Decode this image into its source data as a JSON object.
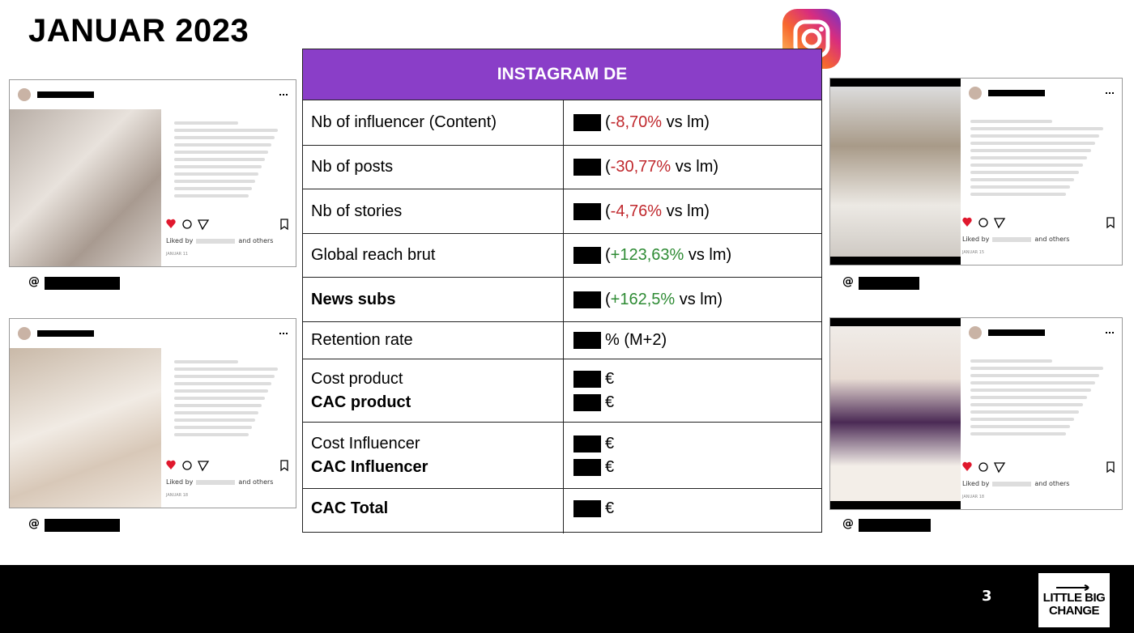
{
  "title": "JANUAR 2023",
  "table": {
    "header": "INSTAGRAM DE",
    "rows": [
      {
        "label": [
          {
            "text": "Nb of influencer (Content)",
            "bold": false
          }
        ],
        "value": [
          {
            "pre": "(",
            "change": "-8,70%",
            "post": " vs lm)",
            "color": "#c0282d"
          }
        ]
      },
      {
        "label": [
          {
            "text": "Nb of posts",
            "bold": false
          }
        ],
        "value": [
          {
            "pre": "(",
            "change": "-30,77%",
            "post": " vs lm)",
            "color": "#c0282d"
          }
        ]
      },
      {
        "label": [
          {
            "text": "Nb of stories",
            "bold": false
          }
        ],
        "value": [
          {
            "pre": "(",
            "change": "-4,76%",
            "post": " vs lm)",
            "color": "#c0282d"
          }
        ]
      },
      {
        "label": [
          {
            "text": "Global reach brut",
            "bold": false
          }
        ],
        "value": [
          {
            "pre": "(",
            "change": "+123,63%",
            "post": " vs lm)",
            "color": "#2e8b34"
          }
        ]
      },
      {
        "label": [
          {
            "text": "News subs",
            "bold": true
          }
        ],
        "value": [
          {
            "pre": "(",
            "change": "+162,5%",
            "post": " vs lm)",
            "color": "#2e8b34"
          }
        ]
      },
      {
        "label": [
          {
            "text": "Retention rate",
            "bold": false
          }
        ],
        "value": [
          {
            "post": "% (M+2)"
          }
        ]
      },
      {
        "label": [
          {
            "text": "Cost product",
            "bold": false
          },
          {
            "text": "CAC product",
            "bold": true
          }
        ],
        "value": [
          {
            "post": "€"
          },
          {
            "post": "€"
          }
        ]
      },
      {
        "label": [
          {
            "text": "Cost Influencer",
            "bold": false
          },
          {
            "text": "CAC Influencer",
            "bold": true
          }
        ],
        "value": [
          {
            "post": "€"
          },
          {
            "post": "€"
          }
        ]
      },
      {
        "label": [
          {
            "text": "CAC Total",
            "bold": true
          }
        ],
        "value": [
          {
            "post": "€"
          }
        ]
      }
    ]
  },
  "posts": [
    {
      "liked_by": "Liked by",
      "others": "and others",
      "date": "JANUAR 11",
      "handle": "@"
    },
    {
      "liked_by": "Liked by",
      "others": "and others",
      "date": "JANUAR 18",
      "handle": "@"
    },
    {
      "liked_by": "Liked by",
      "others": "and others",
      "date": "JANUAR 15",
      "handle": "@"
    },
    {
      "liked_by": "Liked by",
      "others": "and others",
      "date": "JANUAR 18",
      "handle": "@"
    }
  ],
  "footer": {
    "page": "3",
    "logo": [
      "LITTLE BIG",
      "CHANGE"
    ]
  }
}
